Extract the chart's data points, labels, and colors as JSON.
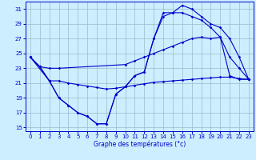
{
  "xlabel": "Graphe des températures (°c)",
  "xlim": [
    -0.5,
    23.5
  ],
  "ylim": [
    14.5,
    32
  ],
  "xticks": [
    0,
    1,
    2,
    3,
    4,
    5,
    6,
    7,
    8,
    9,
    10,
    11,
    12,
    13,
    14,
    15,
    16,
    17,
    18,
    19,
    20,
    21,
    22,
    23
  ],
  "yticks": [
    15,
    17,
    19,
    21,
    23,
    25,
    27,
    29,
    31
  ],
  "background_color": "#cceeff",
  "grid_color": "#99bbcc",
  "line_color": "#0000cc",
  "lines": [
    {
      "comment": "upper nearly-straight line: 0->24.5, 1->23.2, 2->23, 3->23, skip to 10->23.5, 11->24, 12->24.5, 13->25, 14->25.5, 15->26, 16->26.5, 17->27, 18->27.2, 19->27, 20->27.2, 21->22, 22->21.5, 23->21.5",
      "x": [
        0,
        1,
        2,
        3,
        10,
        11,
        12,
        13,
        14,
        15,
        16,
        17,
        18,
        19,
        20,
        21,
        22,
        23
      ],
      "y": [
        24.5,
        23.2,
        23.0,
        23.0,
        23.5,
        24.0,
        24.5,
        25.0,
        25.5,
        26.0,
        26.5,
        27.0,
        27.2,
        27.0,
        27.2,
        22.0,
        21.5,
        21.5
      ]
    },
    {
      "x": [
        0,
        2,
        3,
        4,
        5,
        6,
        7,
        8,
        9,
        10,
        11,
        12,
        13,
        14,
        15,
        16,
        17,
        18,
        19,
        20,
        21,
        22,
        23
      ],
      "y": [
        24.5,
        21.3,
        21.3,
        21.0,
        20.8,
        20.6,
        20.4,
        20.2,
        20.3,
        20.5,
        20.7,
        20.9,
        21.1,
        21.2,
        21.3,
        21.4,
        21.5,
        21.6,
        21.7,
        21.8,
        21.8,
        21.6,
        21.5
      ]
    },
    {
      "x": [
        0,
        1,
        2,
        3,
        4,
        5,
        6,
        7,
        8,
        9,
        10,
        11,
        12,
        13,
        14,
        15,
        16,
        17,
        18,
        19,
        20,
        21,
        22,
        23
      ],
      "y": [
        24.5,
        23.2,
        21.3,
        19.0,
        18.0,
        17.0,
        16.5,
        15.5,
        15.5,
        19.5,
        20.5,
        22.0,
        22.5,
        27.0,
        30.0,
        30.5,
        30.5,
        30.0,
        29.5,
        28.5,
        27.2,
        24.5,
        23.0,
        21.5
      ]
    },
    {
      "x": [
        0,
        1,
        2,
        3,
        4,
        5,
        6,
        7,
        8,
        9,
        10,
        11,
        12,
        13,
        14,
        15,
        16,
        17,
        18,
        19,
        20,
        21,
        22,
        23
      ],
      "y": [
        24.5,
        23.2,
        21.3,
        19.0,
        18.0,
        17.0,
        16.5,
        15.5,
        15.5,
        19.5,
        20.5,
        22.0,
        22.5,
        27.0,
        30.5,
        30.5,
        31.5,
        31.0,
        30.0,
        29.0,
        28.5,
        27.0,
        24.5,
        21.5
      ]
    }
  ]
}
